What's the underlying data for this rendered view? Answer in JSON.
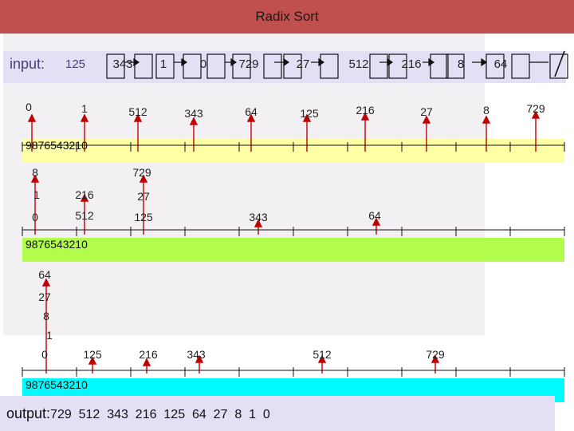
{
  "title": "Radix Sort",
  "input_label": "input:",
  "input_list": [
    "125",
    "343",
    "1",
    "0",
    "729",
    "27",
    "512",
    "216",
    "8",
    "64"
  ],
  "output_label": "output:",
  "output_values": "729  512  343  216  125  64  27  8  1  0",
  "digits_label": "9876543210",
  "colors": {
    "title_bar": "#c0504d",
    "pass1_bar": "#ffffa6",
    "pass2_bar": "#b2fd4c",
    "pass3_bar": "#00fbff",
    "arrow": "#c00000"
  },
  "pass1": {
    "numbers": [
      "0",
      "1",
      "512",
      "343",
      "64",
      "125",
      "216",
      "27",
      "8",
      "729"
    ]
  },
  "pass2": {
    "numbers": [
      "8",
      "729",
      "1",
      "216",
      "27",
      "0",
      "512",
      "125",
      "343",
      "64"
    ]
  },
  "pass3": {
    "numbers": [
      "64",
      "27",
      "8",
      "1",
      "0",
      "125",
      "216",
      "343",
      "512",
      "729"
    ]
  }
}
